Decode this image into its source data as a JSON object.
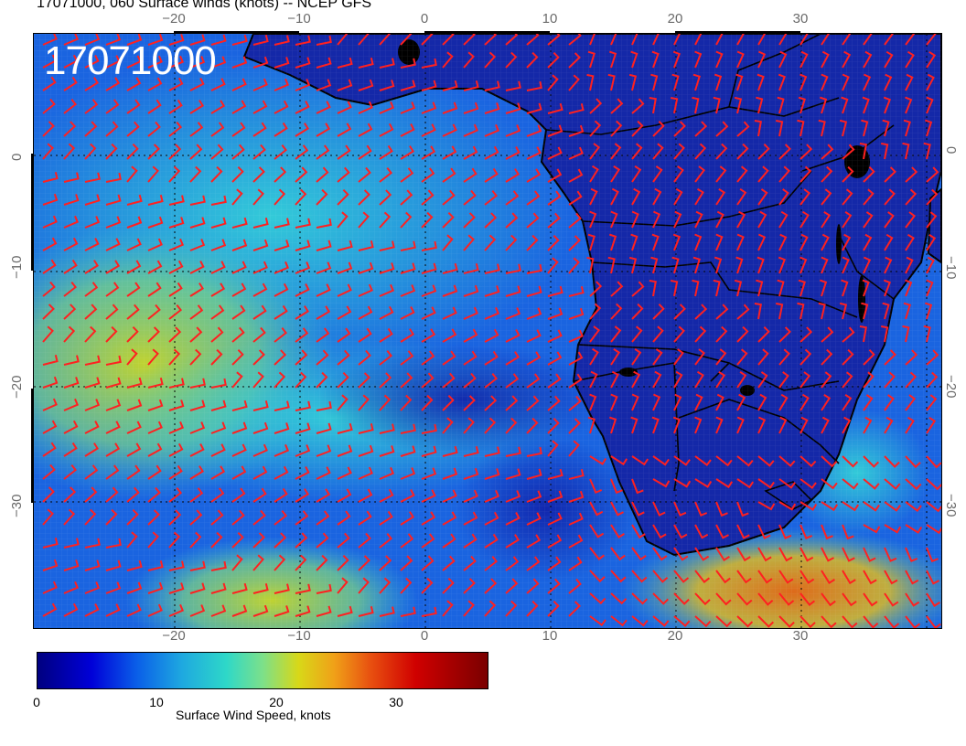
{
  "title": "17071000, 060 Surface winds (knots) -- NCEP GFS",
  "timestamp_overlay": "17071000",
  "map": {
    "x_tick_labels": [
      "−20",
      "−10",
      "0",
      "10",
      "20",
      "30"
    ],
    "y_tick_labels": [
      "0",
      "−10",
      "−20",
      "−30"
    ],
    "barb_color": "#ff2020",
    "coastline_color": "#000000"
  },
  "colorbar": {
    "label": "Surface Wind Speed, knots",
    "tick_labels": [
      "0",
      "10",
      "20",
      "30"
    ],
    "colors": [
      "#000080",
      "#0000d8",
      "#0a5ee8",
      "#1ea8e0",
      "#2ed8c8",
      "#7ce08a",
      "#d8d818",
      "#f0a018",
      "#e85010",
      "#d00000",
      "#7a0000"
    ]
  }
}
